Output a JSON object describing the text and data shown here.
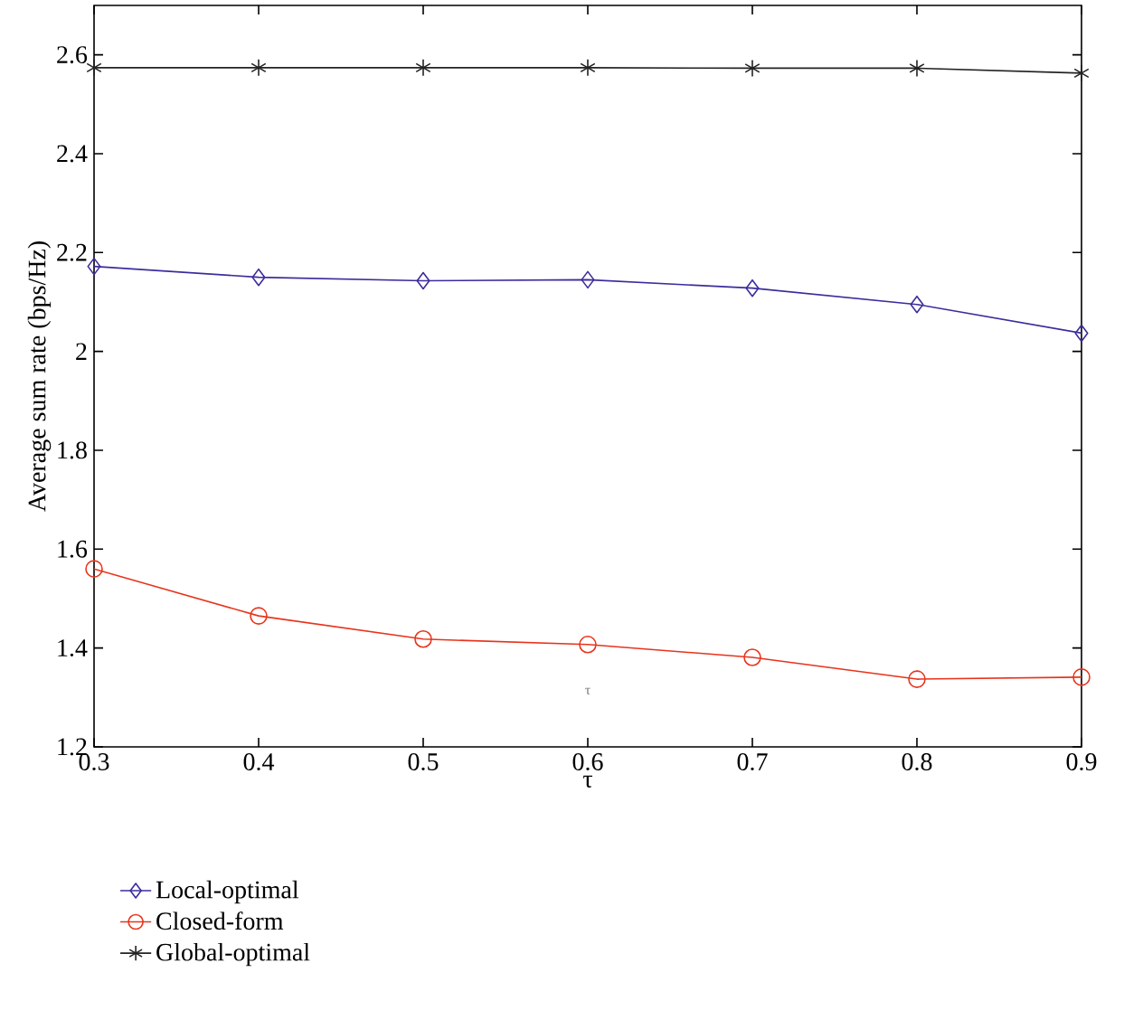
{
  "chart_data": {
    "type": "line",
    "xlabel": "τ",
    "ylabel": "Average sum rate (bps/Hz)",
    "x": [
      0.3,
      0.4,
      0.5,
      0.6,
      0.7,
      0.8,
      0.9
    ],
    "series": [
      {
        "name": "Local-optimal",
        "color": "#3b2d9c",
        "marker": "diamond",
        "values": [
          2.172,
          2.15,
          2.143,
          2.145,
          2.128,
          2.095,
          2.037
        ]
      },
      {
        "name": "Closed-form",
        "color": "#e8341c",
        "marker": "circle",
        "values": [
          1.56,
          1.465,
          1.418,
          1.407,
          1.381,
          1.337,
          1.341
        ]
      },
      {
        "name": "Global-optimal",
        "color": "#222222",
        "marker": "cross",
        "values": [
          2.574,
          2.574,
          2.574,
          2.574,
          2.573,
          2.573,
          2.563
        ]
      }
    ],
    "xlim": [
      0.3,
      0.9
    ],
    "ylim": [
      1.2,
      2.7
    ],
    "xticks": [
      0.3,
      0.4,
      0.5,
      0.6,
      0.7,
      0.8,
      0.9
    ],
    "yticks": [
      1.2,
      1.4,
      1.6,
      1.8,
      2,
      2.2,
      2.4,
      2.6
    ],
    "annotations": [
      "τ"
    ],
    "legend": "bottom",
    "grid": false,
    "line_style": "solid"
  }
}
